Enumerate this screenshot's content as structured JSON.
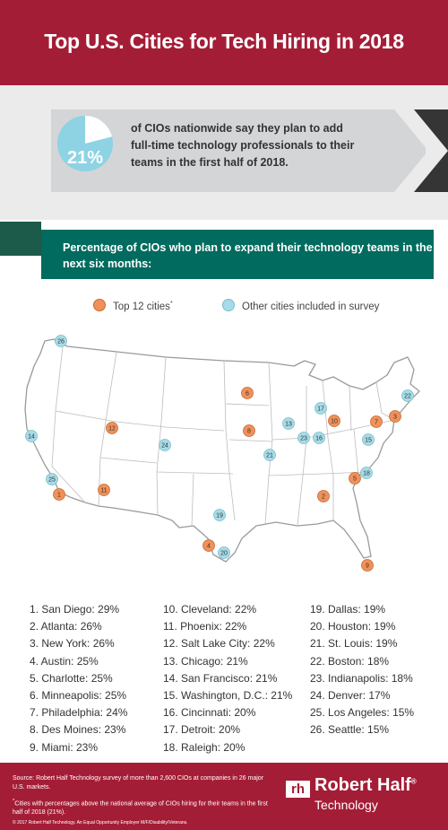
{
  "title": "Top U.S. Cities for Tech Hiring in 2018",
  "stat": {
    "percent": "21%",
    "value": 21,
    "text": "of CIOs nationwide say they plan to add full-time technology professionals to their teams in the first half of 2018."
  },
  "subtitle": "Percentage of CIOs who plan to expand their technology teams in the next six months:",
  "legend": {
    "top_label": "Top 12 cities",
    "top_mark": "*",
    "other_label": "Other cities included in survey"
  },
  "colors": {
    "brand_red": "#a41d36",
    "teal": "#006b5e",
    "top_marker": "#f0915a",
    "other_marker": "#a7dbe7",
    "pie_fill": "#8dd3e4"
  },
  "chart_data": {
    "type": "table",
    "title": "Percentage of CIOs who plan to expand their technology teams in the next six months:",
    "unit": "%",
    "cities": [
      {
        "rank": 1,
        "city": "San Diego",
        "value": 29,
        "top12": true
      },
      {
        "rank": 2,
        "city": "Atlanta",
        "value": 26,
        "top12": true
      },
      {
        "rank": 3,
        "city": "New York",
        "value": 26,
        "top12": true
      },
      {
        "rank": 4,
        "city": "Austin",
        "value": 25,
        "top12": true
      },
      {
        "rank": 5,
        "city": "Charlotte",
        "value": 25,
        "top12": true
      },
      {
        "rank": 6,
        "city": "Minneapolis",
        "value": 25,
        "top12": true
      },
      {
        "rank": 7,
        "city": "Philadelphia",
        "value": 24,
        "top12": true
      },
      {
        "rank": 8,
        "city": "Des Moines",
        "value": 23,
        "top12": true
      },
      {
        "rank": 9,
        "city": "Miami",
        "value": 23,
        "top12": true
      },
      {
        "rank": 10,
        "city": "Cleveland",
        "value": 22,
        "top12": true
      },
      {
        "rank": 11,
        "city": "Phoenix",
        "value": 22,
        "top12": true
      },
      {
        "rank": 12,
        "city": "Salt Lake City",
        "value": 22,
        "top12": true
      },
      {
        "rank": 13,
        "city": "Chicago",
        "value": 21,
        "top12": false
      },
      {
        "rank": 14,
        "city": "San Francisco",
        "value": 21,
        "top12": false
      },
      {
        "rank": 15,
        "city": "Washington, D.C.",
        "value": 21,
        "top12": false
      },
      {
        "rank": 16,
        "city": "Cincinnati",
        "value": 20,
        "top12": false
      },
      {
        "rank": 17,
        "city": "Detroit",
        "value": 20,
        "top12": false
      },
      {
        "rank": 18,
        "city": "Raleigh",
        "value": 20,
        "top12": false
      },
      {
        "rank": 19,
        "city": "Dallas",
        "value": 19,
        "top12": false
      },
      {
        "rank": 20,
        "city": "Houston",
        "value": 19,
        "top12": false
      },
      {
        "rank": 21,
        "city": "St. Louis",
        "value": 19,
        "top12": false
      },
      {
        "rank": 22,
        "city": "Boston",
        "value": 18,
        "top12": false
      },
      {
        "rank": 23,
        "city": "Indianapolis",
        "value": 18,
        "top12": false
      },
      {
        "rank": 24,
        "city": "Denver",
        "value": 17,
        "top12": false
      },
      {
        "rank": 25,
        "city": "Los Angeles",
        "value": 15,
        "top12": false
      },
      {
        "rank": 26,
        "city": "Seattle",
        "value": 15,
        "top12": false
      }
    ]
  },
  "footer": {
    "source": "Source: Robert Half Technology survey of more than 2,600 CIOs at companies in 26 major U.S. markets.",
    "footnote_mark": "*",
    "footnote": "Cities with percentages above the national average of CIOs hiring for their teams in the first half of 2018 (21%).",
    "copyright": "© 2017 Robert Half Technology. An Equal Opportunity Employer M/F/Disability/Veterans.",
    "logo_mark": "rh",
    "brand_name": "Robert Half",
    "brand_reg": "®",
    "brand_sub": "Technology"
  }
}
